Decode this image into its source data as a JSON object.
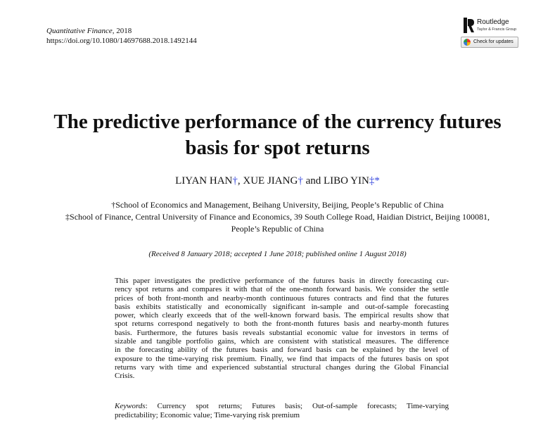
{
  "header": {
    "journal": "Quantitative Finance",
    "year": ", 2018",
    "doi": "https://doi.org/10.1080/14697688.2018.1492144"
  },
  "publisher": {
    "name": "Routledge",
    "sub": "Taylor & Francis Group",
    "logo_letter": "R",
    "check_updates": "Check for updates"
  },
  "title_lines": [
    "The predictive performance of the currency futures",
    "basis for spot returns"
  ],
  "authors": [
    {
      "name": "LIYAN HAN",
      "mark": "†"
    },
    {
      "name": "XUE JIANG",
      "mark": "†"
    },
    {
      "name": "LIBO YIN",
      "mark": "‡*"
    }
  ],
  "author_sep": ", ",
  "author_and": " and ",
  "affiliations": [
    "†School of Economics and Management, Beihang University, Beijing, People’s Republic of China",
    "‡School of Finance, Central University of Finance and Economics, 39 South College Road, Haidian District, Beijing 100081,",
    "People’s Republic of China"
  ],
  "dates": "(Received 8 January 2018; accepted 1 June 2018; published online 1 August 2018)",
  "abstract_lines": [
    "This paper investigates the predictive performance of the futures basis in directly forecasting cur-",
    "rency spot returns and compares it with that of the one-month forward basis. We consider the settle",
    "prices of both front-month and nearby-month continuous futures contracts and find that the futures",
    "basis exhibits statistically and economically significant in-sample and out-of-sample forecasting",
    "power, which clearly exceeds that of the well-known forward basis. The empirical results show that",
    "spot returns correspond negatively to both the front-month futures basis and nearby-month futures",
    "basis. Furthermore, the futures basis reveals substantial economic value for investors in terms of",
    "sizable and tangible portfolio gains, which are consistent with statistical measures. The difference",
    "in the forecasting ability of the futures basis and forward basis can be explained by the level of",
    "exposure to the time-varying risk premium. Finally, we find that impacts of the futures basis on spot",
    "returns vary with time and experienced substantial structural changes during the Global Financial",
    "Crisis."
  ],
  "keywords": {
    "label": "Keywords",
    "lines": [
      ": Currency spot returns; Futures basis; Out-of-sample forecasts; Time-varying",
      "predictability; Economic value; Time-varying risk premium"
    ]
  },
  "colors": {
    "dagger": "#3344dd"
  }
}
